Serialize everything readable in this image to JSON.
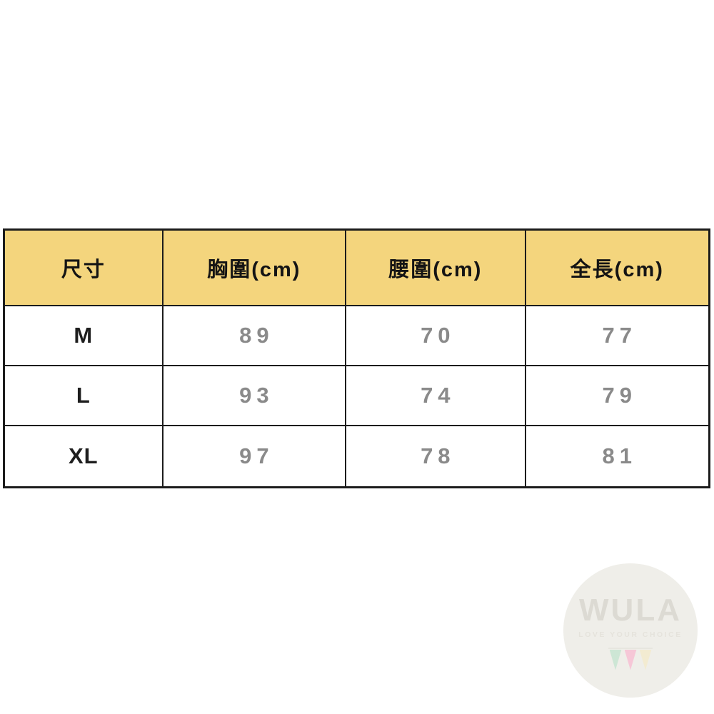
{
  "chart_data": {
    "type": "table",
    "columns": [
      "尺寸",
      "胸圍(cm)",
      "腰圍(cm)",
      "全長(cm)"
    ],
    "rows": [
      [
        "M",
        "89",
        "70",
        "77"
      ],
      [
        "L",
        "93",
        "74",
        "79"
      ],
      [
        "XL",
        "97",
        "78",
        "81"
      ]
    ]
  },
  "watermark": {
    "brand": "WULA",
    "tagline": "LOVE YOUR CHOICE"
  },
  "colors": {
    "header_bg": "#F4D57D",
    "border": "#1C1C1C",
    "header_text": "#141414",
    "size_text": "#1E1E1E",
    "value_text": "#8A8A8A",
    "watermark_bg": "#EFEEE9",
    "watermark_brand": "#DCDAD3",
    "watermark_tagline": "#E5E3DC",
    "flag_green": "#CDE6D5",
    "flag_pink": "#F6C7D7",
    "flag_cream": "#F3EBD1"
  }
}
